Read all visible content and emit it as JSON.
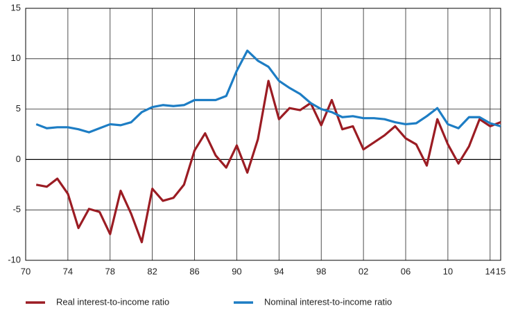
{
  "chart_data": {
    "type": "line",
    "x": [
      1971,
      1972,
      1973,
      1974,
      1975,
      1976,
      1977,
      1978,
      1979,
      1980,
      1981,
      1982,
      1983,
      1984,
      1985,
      1986,
      1987,
      1988,
      1989,
      1990,
      1991,
      1992,
      1993,
      1994,
      1995,
      1996,
      1997,
      1998,
      1999,
      2000,
      2001,
      2002,
      2003,
      2004,
      2005,
      2006,
      2007,
      2008,
      2009,
      2010,
      2011,
      2012,
      2013,
      2014,
      2015
    ],
    "series": [
      {
        "name": "Real interest-to-income ratio",
        "color": "#9b1c23",
        "values": [
          -2.5,
          -2.7,
          -1.9,
          -3.4,
          -6.8,
          -4.9,
          -5.2,
          -7.4,
          -3.1,
          -5.4,
          -8.2,
          -2.9,
          -4.1,
          -3.8,
          -2.5,
          0.9,
          2.6,
          0.4,
          -0.8,
          1.4,
          -1.3,
          2.0,
          7.8,
          4.0,
          5.1,
          4.9,
          5.6,
          3.4,
          5.9,
          3.0,
          3.3,
          1.0,
          1.7,
          2.4,
          3.3,
          2.1,
          1.5,
          -0.6,
          4.0,
          1.5,
          -0.4,
          1.3,
          4.0,
          3.3,
          3.7
        ]
      },
      {
        "name": "Nominal interest-to-income ratio",
        "color": "#1d7dc4",
        "values": [
          3.5,
          3.1,
          3.2,
          3.2,
          3.0,
          2.7,
          3.1,
          3.5,
          3.4,
          3.7,
          4.7,
          5.2,
          5.4,
          5.3,
          5.4,
          5.9,
          5.9,
          5.9,
          6.3,
          8.8,
          10.8,
          9.8,
          9.2,
          7.8,
          7.1,
          6.5,
          5.6,
          5.0,
          4.7,
          4.2,
          4.3,
          4.1,
          4.1,
          4.0,
          3.7,
          3.5,
          3.6,
          4.3,
          5.1,
          3.5,
          3.1,
          4.2,
          4.2,
          3.6,
          3.3
        ]
      }
    ],
    "xlim": [
      1970,
      2015
    ],
    "xticks": [
      {
        "value": 1970,
        "label": "70"
      },
      {
        "value": 1974,
        "label": "74"
      },
      {
        "value": 1978,
        "label": "78"
      },
      {
        "value": 1982,
        "label": "82"
      },
      {
        "value": 1986,
        "label": "86"
      },
      {
        "value": 1990,
        "label": "90"
      },
      {
        "value": 1994,
        "label": "94"
      },
      {
        "value": 1998,
        "label": "98"
      },
      {
        "value": 2002,
        "label": "02"
      },
      {
        "value": 2006,
        "label": "06"
      },
      {
        "value": 2010,
        "label": "10"
      },
      {
        "value": 2014,
        "label": "14"
      },
      {
        "value": 2015,
        "label": "15"
      }
    ],
    "ylim": [
      -10,
      15
    ],
    "yticks": [
      -10,
      -5,
      0,
      5,
      10,
      15
    ],
    "grid": true,
    "legend": "bottom"
  }
}
